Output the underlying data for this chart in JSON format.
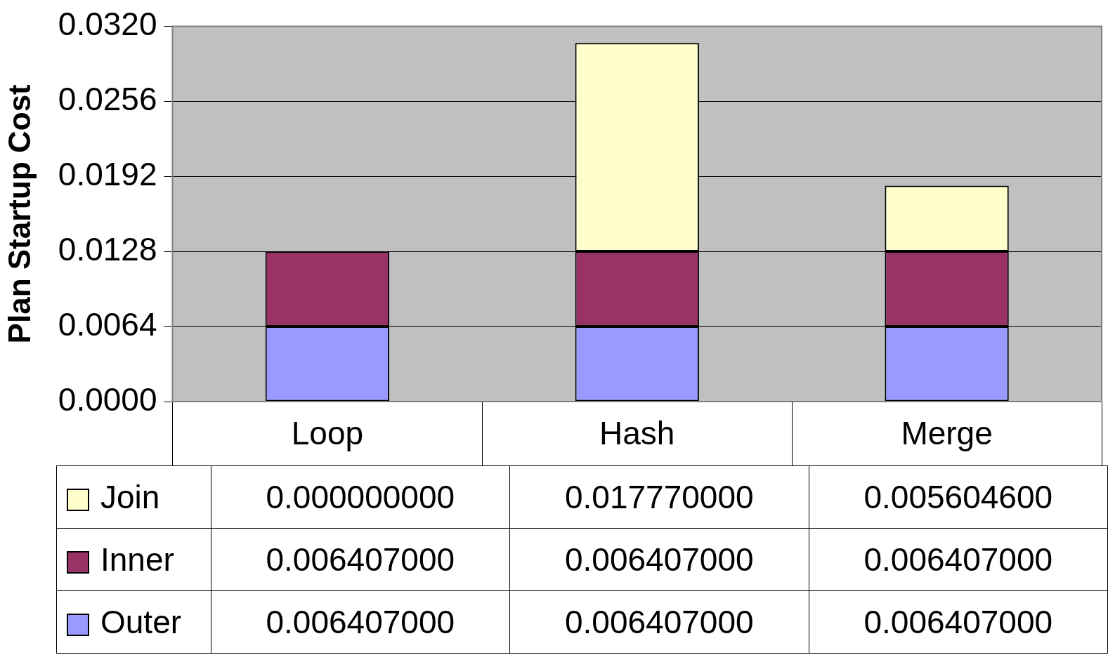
{
  "chart_data": {
    "type": "bar",
    "stacked": true,
    "ylabel": "Plan Startup Cost",
    "categories": [
      "Loop",
      "Hash",
      "Merge"
    ],
    "series": [
      {
        "name": "Outer",
        "color": "#9999ff",
        "values": [
          0.006407,
          0.006407,
          0.006407
        ],
        "value_labels": [
          "0.006407000",
          "0.006407000",
          "0.006407000"
        ]
      },
      {
        "name": "Inner",
        "color": "#993366",
        "values": [
          0.006407,
          0.006407,
          0.006407
        ],
        "value_labels": [
          "0.006407000",
          "0.006407000",
          "0.006407000"
        ]
      },
      {
        "name": "Join",
        "color": "#ffffcc",
        "values": [
          0,
          0.01777,
          0.0056046
        ],
        "value_labels": [
          "0.000000000",
          "0.017770000",
          "0.005604600"
        ]
      }
    ],
    "ylim": [
      0,
      0.032
    ],
    "yticks": [
      {
        "value": 0,
        "label": "0.0000"
      },
      {
        "value": 0.0064,
        "label": "0.0064"
      },
      {
        "value": 0.0128,
        "label": "0.0128"
      },
      {
        "value": 0.0192,
        "label": "0.0192"
      },
      {
        "value": 0.0256,
        "label": "0.0256"
      },
      {
        "value": 0.032,
        "label": "0.0320"
      }
    ],
    "grid": "y",
    "legend": "bottom"
  }
}
